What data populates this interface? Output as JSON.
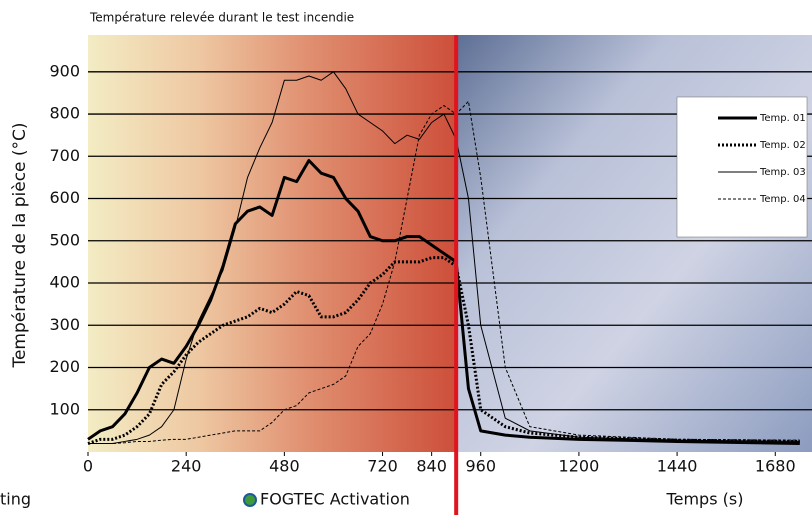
{
  "chart_data": {
    "type": "line",
    "title": "Température relevée durant le test incendie",
    "ylabel": "Température de la pièce (°C)",
    "xlabel": "Temps (s)",
    "annotations": [
      "ting",
      "FOGTEC Activation"
    ],
    "activation_time": 900,
    "x": [
      0,
      30,
      60,
      90,
      120,
      150,
      180,
      210,
      240,
      270,
      300,
      330,
      360,
      390,
      420,
      450,
      480,
      510,
      540,
      570,
      600,
      630,
      660,
      690,
      720,
      750,
      780,
      810,
      840,
      870,
      900,
      930,
      960,
      1020,
      1080,
      1200,
      1440,
      1740
    ],
    "series": [
      {
        "name": "Temp. 01",
        "color": "#000000",
        "line_width": 3,
        "style": "solid",
        "values": [
          30,
          50,
          60,
          90,
          140,
          200,
          220,
          210,
          250,
          300,
          360,
          440,
          540,
          570,
          580,
          560,
          650,
          640,
          690,
          660,
          650,
          600,
          570,
          510,
          500,
          500,
          510,
          510,
          490,
          470,
          450,
          150,
          50,
          40,
          35,
          30,
          25,
          20
        ]
      },
      {
        "name": "Temp. 02",
        "color": "#000000",
        "line_width": 3,
        "style": "dotted",
        "values": [
          20,
          30,
          30,
          40,
          60,
          90,
          160,
          190,
          230,
          260,
          280,
          300,
          310,
          320,
          340,
          330,
          350,
          380,
          370,
          320,
          320,
          330,
          360,
          400,
          420,
          450,
          450,
          450,
          460,
          460,
          440,
          300,
          100,
          60,
          45,
          35,
          28,
          25
        ]
      },
      {
        "name": "Temp. 03",
        "color": "#000000",
        "line_width": 1,
        "style": "solid",
        "values": [
          20,
          20,
          20,
          25,
          30,
          40,
          60,
          100,
          220,
          310,
          370,
          430,
          530,
          650,
          720,
          780,
          880,
          880,
          890,
          880,
          900,
          860,
          800,
          780,
          760,
          730,
          750,
          740,
          780,
          800,
          740,
          600,
          300,
          80,
          50,
          35,
          28,
          25
        ]
      },
      {
        "name": "Temp. 04",
        "color": "#000000",
        "line_width": 1,
        "style": "dashed",
        "values": [
          20,
          20,
          20,
          22,
          25,
          25,
          28,
          30,
          30,
          35,
          40,
          45,
          50,
          50,
          50,
          70,
          100,
          110,
          140,
          150,
          160,
          180,
          250,
          280,
          350,
          450,
          600,
          750,
          800,
          820,
          800,
          830,
          650,
          200,
          60,
          40,
          30,
          28
        ]
      }
    ],
    "xlim": [
      0,
      1760
    ],
    "ylim": [
      0,
      980
    ],
    "xticks": [
      0,
      240,
      480,
      720,
      840,
      960,
      1200,
      1440,
      1680
    ],
    "yticks": [
      100,
      200,
      300,
      400,
      500,
      600,
      700,
      800,
      900
    ],
    "grid": true,
    "legend": "upper right"
  }
}
